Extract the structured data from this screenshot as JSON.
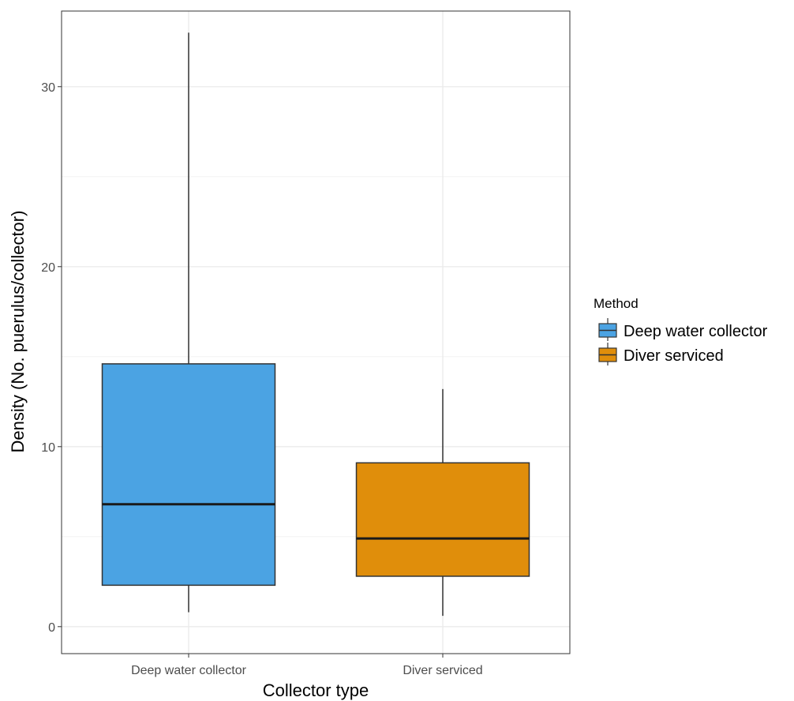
{
  "chart_data": {
    "type": "box",
    "xlabel": "Collector type",
    "ylabel": "Density (No. puerulus/collector)",
    "categories": [
      "Deep water collector",
      "Diver serviced"
    ],
    "ylim": [
      -1.5,
      34.2
    ],
    "yticks": [
      0,
      10,
      20,
      30
    ],
    "ytick_labels": [
      "0",
      "10",
      "20",
      "30"
    ],
    "minor_gridlines": [
      5,
      15,
      25
    ],
    "grid": true,
    "legend": {
      "title": "Method",
      "position": "right",
      "entries": [
        "Deep water collector",
        "Diver serviced"
      ]
    },
    "series": [
      {
        "name": "Deep water collector",
        "color": "#4BA3E3",
        "min": 0.8,
        "q1": 2.3,
        "median": 6.8,
        "q3": 14.6,
        "max": 33.0
      },
      {
        "name": "Diver serviced",
        "color": "#E08E0B",
        "min": 0.6,
        "q1": 2.8,
        "median": 4.9,
        "q3": 9.1,
        "max": 13.2
      }
    ]
  }
}
